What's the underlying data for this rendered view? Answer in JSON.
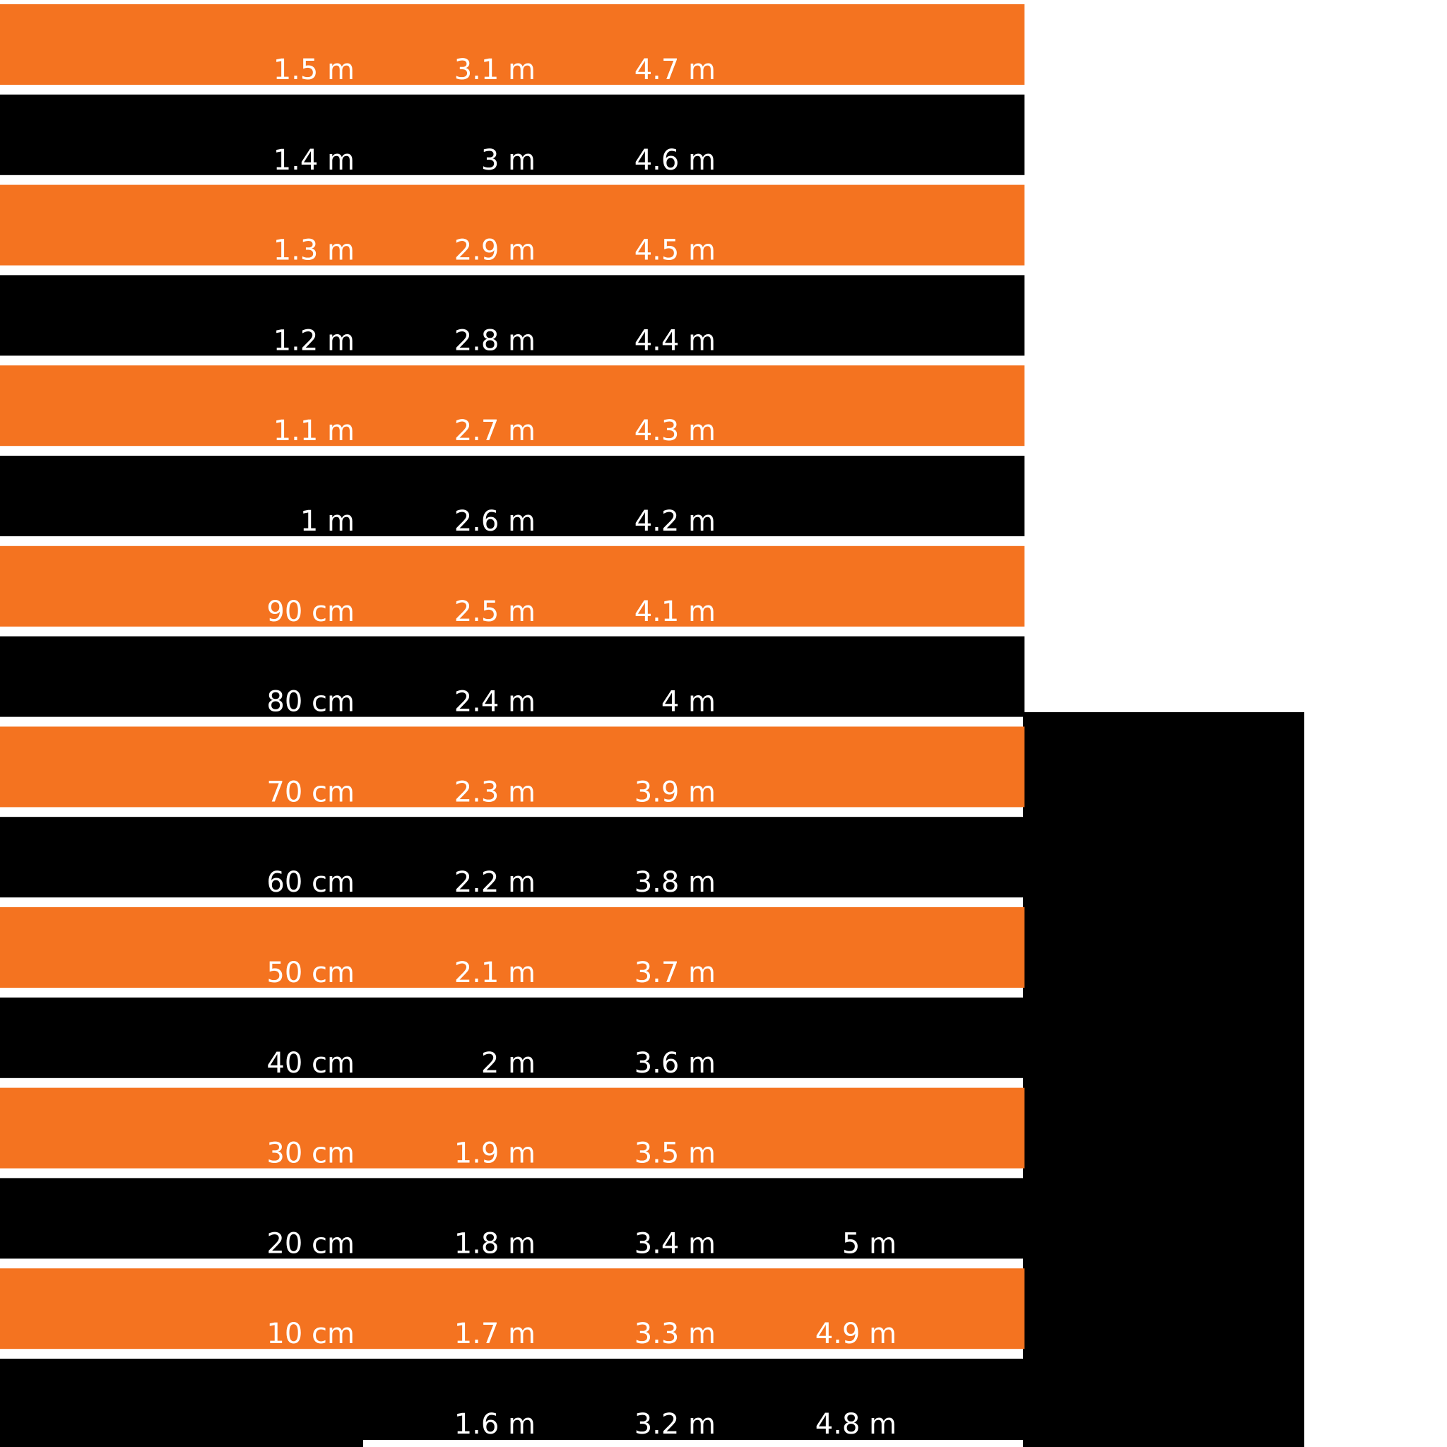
{
  "colors": {
    "background": "#ffffff",
    "orange_band": "#f47320",
    "black_band": "#000000",
    "label": "#ffffff"
  },
  "bands": [
    {
      "color": "orange",
      "labels": [
        "1.5 m",
        "3.1 m",
        "4.7 m",
        ""
      ]
    },
    {
      "color": "black",
      "labels": [
        "1.4 m",
        "3 m",
        "4.6 m",
        ""
      ]
    },
    {
      "color": "orange",
      "labels": [
        "1.3 m",
        "2.9 m",
        "4.5 m",
        ""
      ]
    },
    {
      "color": "black",
      "labels": [
        "1.2 m",
        "2.8 m",
        "4.4 m",
        ""
      ]
    },
    {
      "color": "orange",
      "labels": [
        "1.1 m",
        "2.7 m",
        "4.3 m",
        ""
      ]
    },
    {
      "color": "black",
      "labels": [
        "1 m",
        "2.6 m",
        "4.2 m",
        ""
      ]
    },
    {
      "color": "orange",
      "labels": [
        "90 cm",
        "2.5 m",
        "4.1 m",
        ""
      ]
    },
    {
      "color": "black",
      "labels": [
        "80 cm",
        "2.4 m",
        "4 m",
        ""
      ]
    },
    {
      "color": "orange",
      "labels": [
        "70 cm",
        "2.3 m",
        "3.9 m",
        ""
      ]
    },
    {
      "color": "black",
      "labels": [
        "60 cm",
        "2.2 m",
        "3.8 m",
        ""
      ]
    },
    {
      "color": "orange",
      "labels": [
        "50 cm",
        "2.1 m",
        "3.7 m",
        ""
      ]
    },
    {
      "color": "black",
      "labels": [
        "40 cm",
        "2 m",
        "3.6 m",
        ""
      ]
    },
    {
      "color": "orange",
      "labels": [
        "30 cm",
        "1.9 m",
        "3.5 m",
        ""
      ]
    },
    {
      "color": "black",
      "labels": [
        "20 cm",
        "1.8 m",
        "3.4 m",
        "5 m"
      ]
    },
    {
      "color": "orange",
      "labels": [
        "10 cm",
        "1.7 m",
        "3.3 m",
        "4.9 m"
      ]
    },
    {
      "color": "black",
      "labels": [
        "",
        "1.6 m",
        "3.2 m",
        "4.8 m"
      ]
    }
  ]
}
